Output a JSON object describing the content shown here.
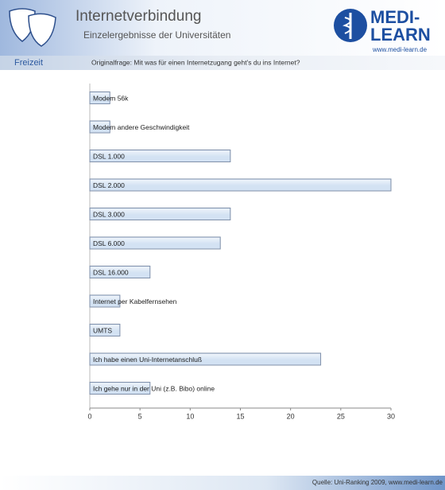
{
  "header": {
    "title": "Internetverbindung",
    "subtitle": "Einzelergebnisse der Universitäten",
    "logo_top": "MEDI-",
    "logo_bottom": "LEARN",
    "url": "www.medi-learn.de"
  },
  "section": "Freizeit",
  "question": "Originalfrage: Mit was für einen Internetzugang geht's du ins Internet?",
  "source": "Quelle: Uni-Ranking 2009, www.medi-learn.de",
  "chart_data": {
    "type": "bar",
    "orientation": "horizontal",
    "categories": [
      "Modem 56k",
      "Modem andere Geschwindigkeit",
      "DSL 1.000",
      "DSL 2.000",
      "DSL 3.000",
      "DSL 6.000",
      "DSL 16.000",
      "Internet per Kabelfernsehen",
      "UMTS",
      "Ich habe einen Uni-Internetanschluß",
      "Ich gehe nur in der Uni (z.B. Bibo) online"
    ],
    "values": [
      2,
      2,
      14,
      30,
      14,
      13,
      6,
      3,
      3,
      23,
      6
    ],
    "color": "#d3e2f3",
    "xlim": [
      0,
      30
    ],
    "xticks": [
      0,
      5,
      10,
      15,
      20,
      25,
      30
    ]
  }
}
